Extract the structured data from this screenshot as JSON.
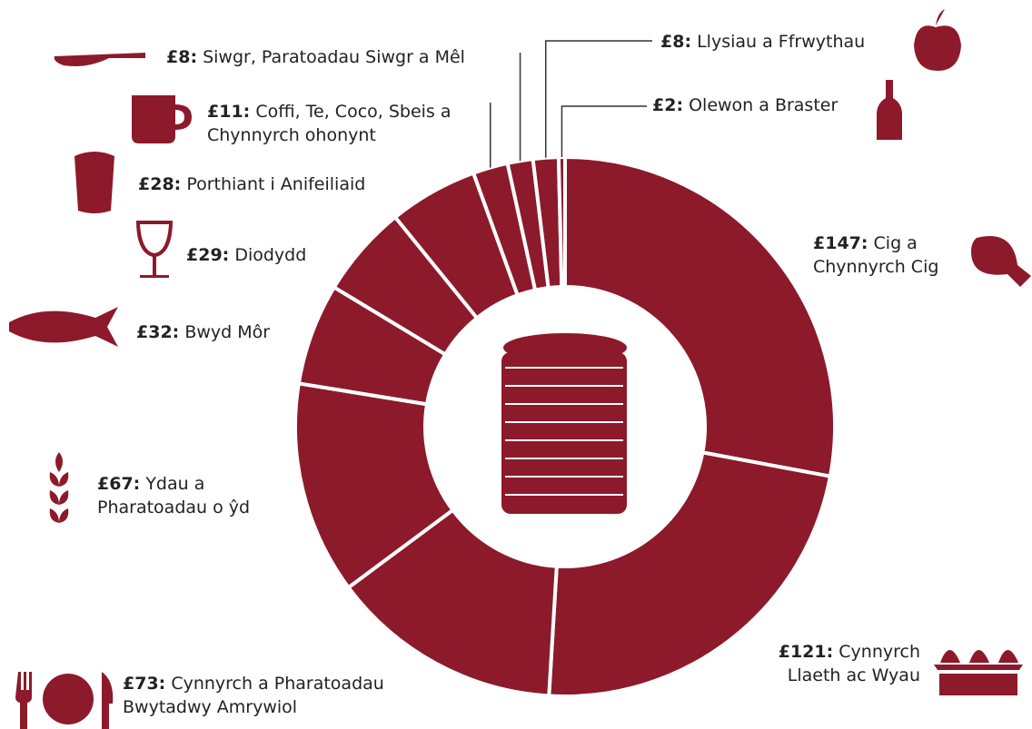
{
  "chart_data": {
    "type": "pie",
    "categories": [
      "Cig a Chynnyrch Cig",
      "Cynnyrch Llaeth ac Wyau",
      "Cynnyrch a Pharatoadau Bwytadwy Amrywiol",
      "Ydau a Pharatoadau o ŷd",
      "Bwyd Môr",
      "Diodydd",
      "Porthiant i Anifeiliaid",
      "Coffi, Te, Coco, Sbeis a Chynnyrch ohonynt",
      "Siwgr, Paratoadau Siwgr a Mêl",
      "Llysiau a Ffrwythau",
      "Olewon a Braster"
    ],
    "values": [
      147,
      121,
      73,
      67,
      32,
      29,
      28,
      11,
      8,
      8,
      2
    ],
    "value_labels": [
      "£147:",
      "£121:",
      "£73:",
      "£67:",
      "£32:",
      "£29:",
      "£28:",
      "£11:",
      "£8:",
      "£8:",
      "£2:"
    ],
    "color": "#8c1a2b"
  }
}
